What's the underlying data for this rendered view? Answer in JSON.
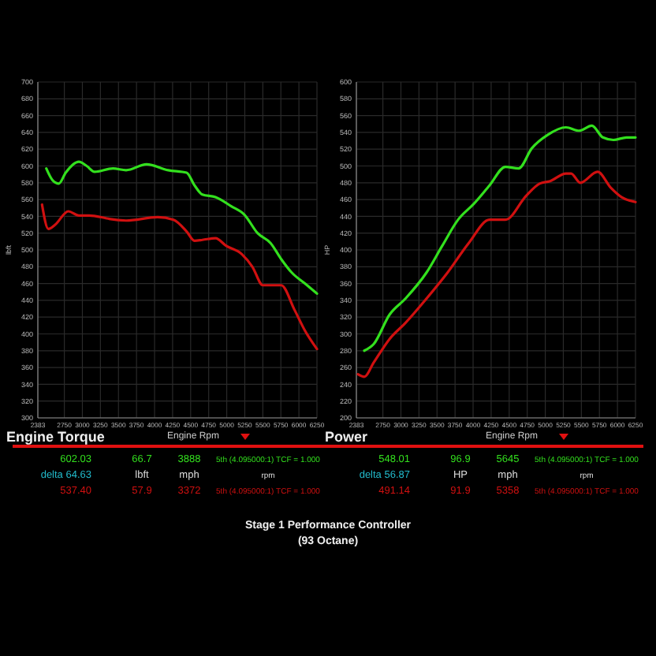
{
  "chart_data": [
    {
      "type": "line",
      "title": "Engine Torque",
      "xlabel": "Engine Rpm",
      "ylabel": "lbft",
      "xlim": [
        2383,
        6250
      ],
      "ylim": [
        300,
        700
      ],
      "xticks": [
        2383,
        2750,
        3000,
        3250,
        3500,
        3750,
        4000,
        4250,
        4500,
        4750,
        5000,
        5250,
        5500,
        5750,
        6000,
        6250
      ],
      "yticks": [
        300,
        320,
        340,
        360,
        380,
        400,
        420,
        440,
        460,
        480,
        500,
        520,
        540,
        560,
        580,
        600,
        620,
        640,
        660,
        680,
        700
      ],
      "grid": true,
      "series": [
        {
          "color": "#33e01e",
          "x": [
            2500,
            2587,
            2674,
            2769,
            2951,
            3060,
            3170,
            3424,
            3606,
            3888,
            4189,
            4444,
            4553,
            4662,
            4845,
            5063,
            5245,
            5427,
            5609,
            5755,
            5901,
            6083,
            6250
          ],
          "values": [
            597,
            583,
            579,
            592,
            605,
            600,
            593,
            597,
            595,
            602,
            595,
            592,
            577,
            566,
            563,
            552,
            542,
            520,
            508,
            489,
            473,
            460,
            448
          ]
        },
        {
          "color": "#d01010",
          "x": [
            2441,
            2529,
            2623,
            2805,
            2951,
            3097,
            3315,
            3372,
            3606,
            4043,
            4262,
            4444,
            4553,
            4662,
            4845,
            4990,
            5209,
            5355,
            5500,
            5755,
            5937,
            6083,
            6250
          ],
          "values": [
            554,
            525,
            530,
            546,
            541,
            541,
            538,
            537,
            535,
            539,
            536,
            522,
            511,
            512,
            514,
            505,
            495,
            480,
            458,
            458,
            429,
            404,
            382
          ]
        }
      ],
      "annotations": [
        "602.03",
        "66.7",
        "3888",
        "5th (4.095000:1) TCF = 1.000",
        "delta 64.63",
        "lbft",
        "mph",
        "rpm",
        "537.40",
        "57.9",
        "3372",
        "5th (4.095000:1) TCF = 1.000"
      ]
    },
    {
      "type": "line",
      "title": "Power",
      "xlabel": "Engine Rpm",
      "ylabel": "HP",
      "xlim": [
        2383,
        6250
      ],
      "ylim": [
        200,
        600
      ],
      "xticks": [
        2383,
        2750,
        3000,
        3250,
        3500,
        3750,
        4000,
        4250,
        4500,
        4750,
        5000,
        5250,
        5500,
        5750,
        6000,
        6250
      ],
      "yticks": [
        200,
        220,
        240,
        260,
        280,
        300,
        320,
        340,
        360,
        380,
        400,
        420,
        440,
        460,
        480,
        500,
        520,
        540,
        560,
        580,
        600
      ],
      "grid": true,
      "series": [
        {
          "color": "#33e01e",
          "x": [
            2492,
            2624,
            2843,
            3062,
            3354,
            3573,
            3792,
            4011,
            4229,
            4448,
            4630,
            4813,
            5032,
            5287,
            5470,
            5645,
            5798,
            5944,
            6126,
            6250
          ],
          "values": [
            280,
            288,
            323,
            342,
            373,
            405,
            436,
            455,
            477,
            499,
            497,
            521,
            537,
            546,
            542,
            548,
            534,
            531,
            534,
            534
          ]
        },
        {
          "color": "#d01010",
          "x": [
            2405,
            2492,
            2624,
            2843,
            3062,
            3354,
            3646,
            3938,
            4229,
            4448,
            4740,
            4922,
            5068,
            5287,
            5358,
            5484,
            5725,
            5908,
            6054,
            6250
          ],
          "values": [
            252,
            249,
            266,
            294,
            313,
            342,
            373,
            408,
            436,
            436,
            465,
            479,
            482,
            491,
            491,
            480,
            493,
            474,
            463,
            457
          ]
        }
      ],
      "annotations": [
        "548.01",
        "96.9",
        "5645",
        "5th (4.095000:1) TCF = 1.000",
        "delta 56.87",
        "HP",
        "mph",
        "rpm",
        "491.14",
        "91.9",
        "5358",
        "5th (4.095000:1) TCF = 1.000",
        "Stage 1 Performance Controller",
        "(93 Octane)"
      ]
    }
  ]
}
